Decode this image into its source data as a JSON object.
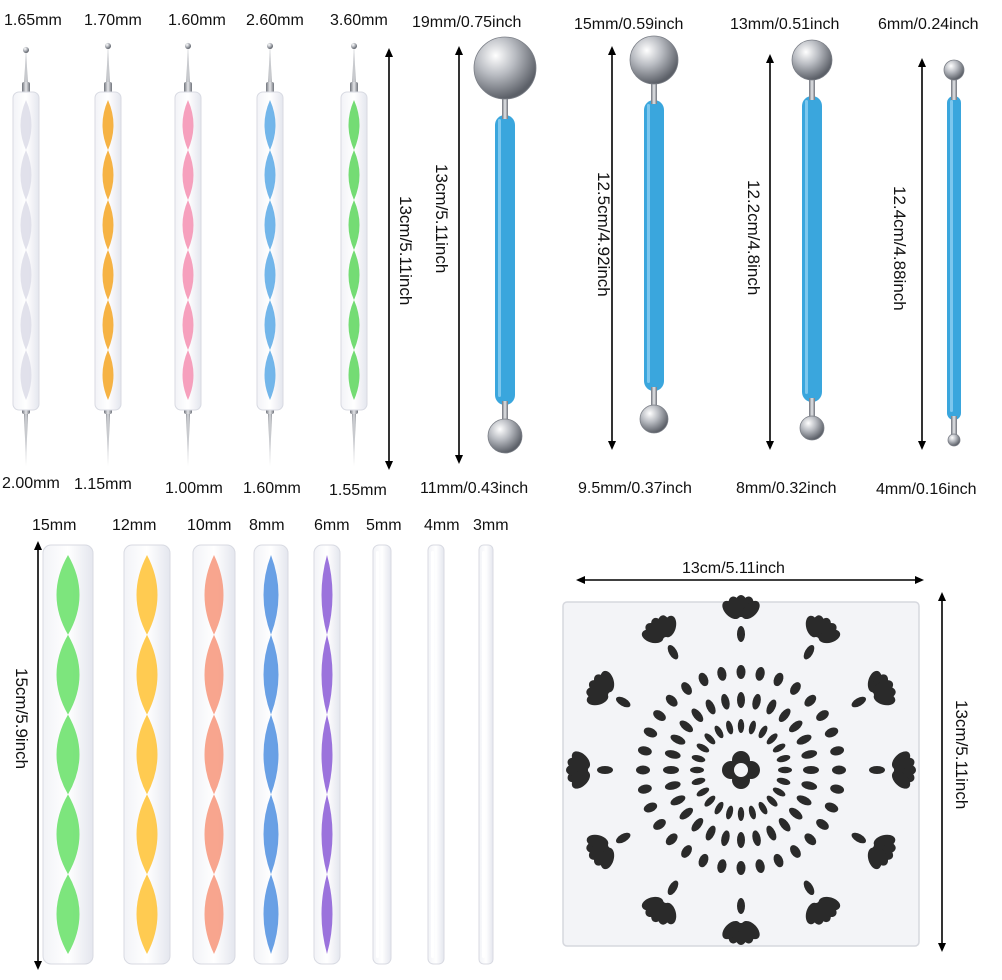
{
  "dotting_tools": {
    "top_tip_sizes": [
      "1.65mm",
      "1.70mm",
      "1.60mm",
      "2.60mm",
      "3.60mm"
    ],
    "bottom_tip_sizes": [
      "2.00mm",
      "1.15mm",
      "1.00mm",
      "1.60mm",
      "1.55mm"
    ],
    "length": "13cm/5.11inch",
    "colors": [
      "#dcdce8",
      "#f5a623",
      "#f48fb1",
      "#5aa9e6",
      "#5cd65c"
    ]
  },
  "ball_tools": [
    {
      "top": "19mm/0.75inch",
      "bottom": "11mm/0.43inch",
      "length": "13cm/5.11inch"
    },
    {
      "top": "15mm/0.59inch",
      "bottom": "9.5mm/0.37inch",
      "length": "12.5cm/4.92inch"
    },
    {
      "top": "13mm/0.51inch",
      "bottom": "8mm/0.32inch",
      "length": "12.2cm/4.8inch"
    },
    {
      "top": "6mm/0.24inch",
      "bottom": "4mm/0.16inch",
      "length": "12.4cm/4.88inch"
    }
  ],
  "ball_tool_color": "#3aa6dd",
  "rods": {
    "sizes": [
      "15mm",
      "12mm",
      "10mm",
      "8mm",
      "6mm",
      "5mm",
      "4mm",
      "3mm"
    ],
    "length": "15cm/5.9inch",
    "colors": [
      "#66e066",
      "#ffc233",
      "#f7957a",
      "#4f8fe0",
      "#8a5ad6",
      "#e8e8f0",
      "#e8e8f0",
      "#e8e8f0"
    ]
  },
  "stencil": {
    "width": "13cm/5.11inch",
    "height": "13cm/5.11inch",
    "pattern_color": "#2a2a2a"
  }
}
